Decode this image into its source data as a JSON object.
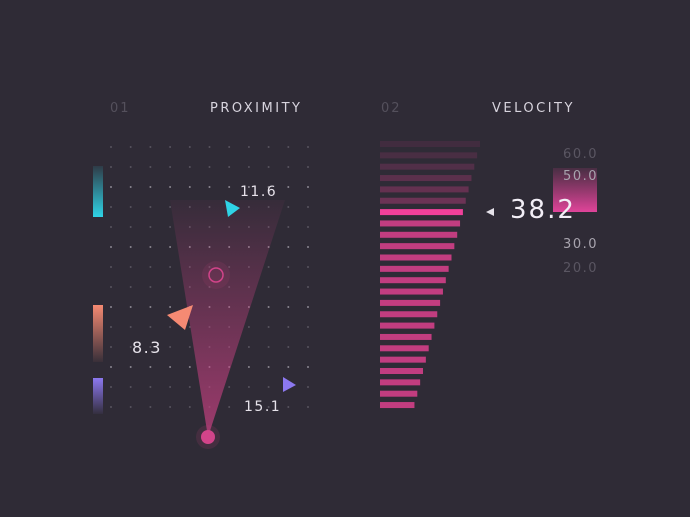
{
  "proximity": {
    "index": "01",
    "title": "PROXIMITY",
    "targets": [
      {
        "label": "11.6",
        "color": "#2fd3e6"
      },
      {
        "label": "8.3",
        "color": "#f58a73"
      },
      {
        "label": "15.1",
        "color": "#8c78f0"
      }
    ],
    "cone_color": "#c2407f"
  },
  "velocity": {
    "index": "02",
    "title": "VELOCITY",
    "current_value": "38.2",
    "scale_ticks": [
      "60.0",
      "50.0",
      "30.0",
      "20.0"
    ],
    "bar_count": 24,
    "active_bar_index": 6,
    "bar_color": "#c23d80",
    "active_color": "#f0409a"
  }
}
